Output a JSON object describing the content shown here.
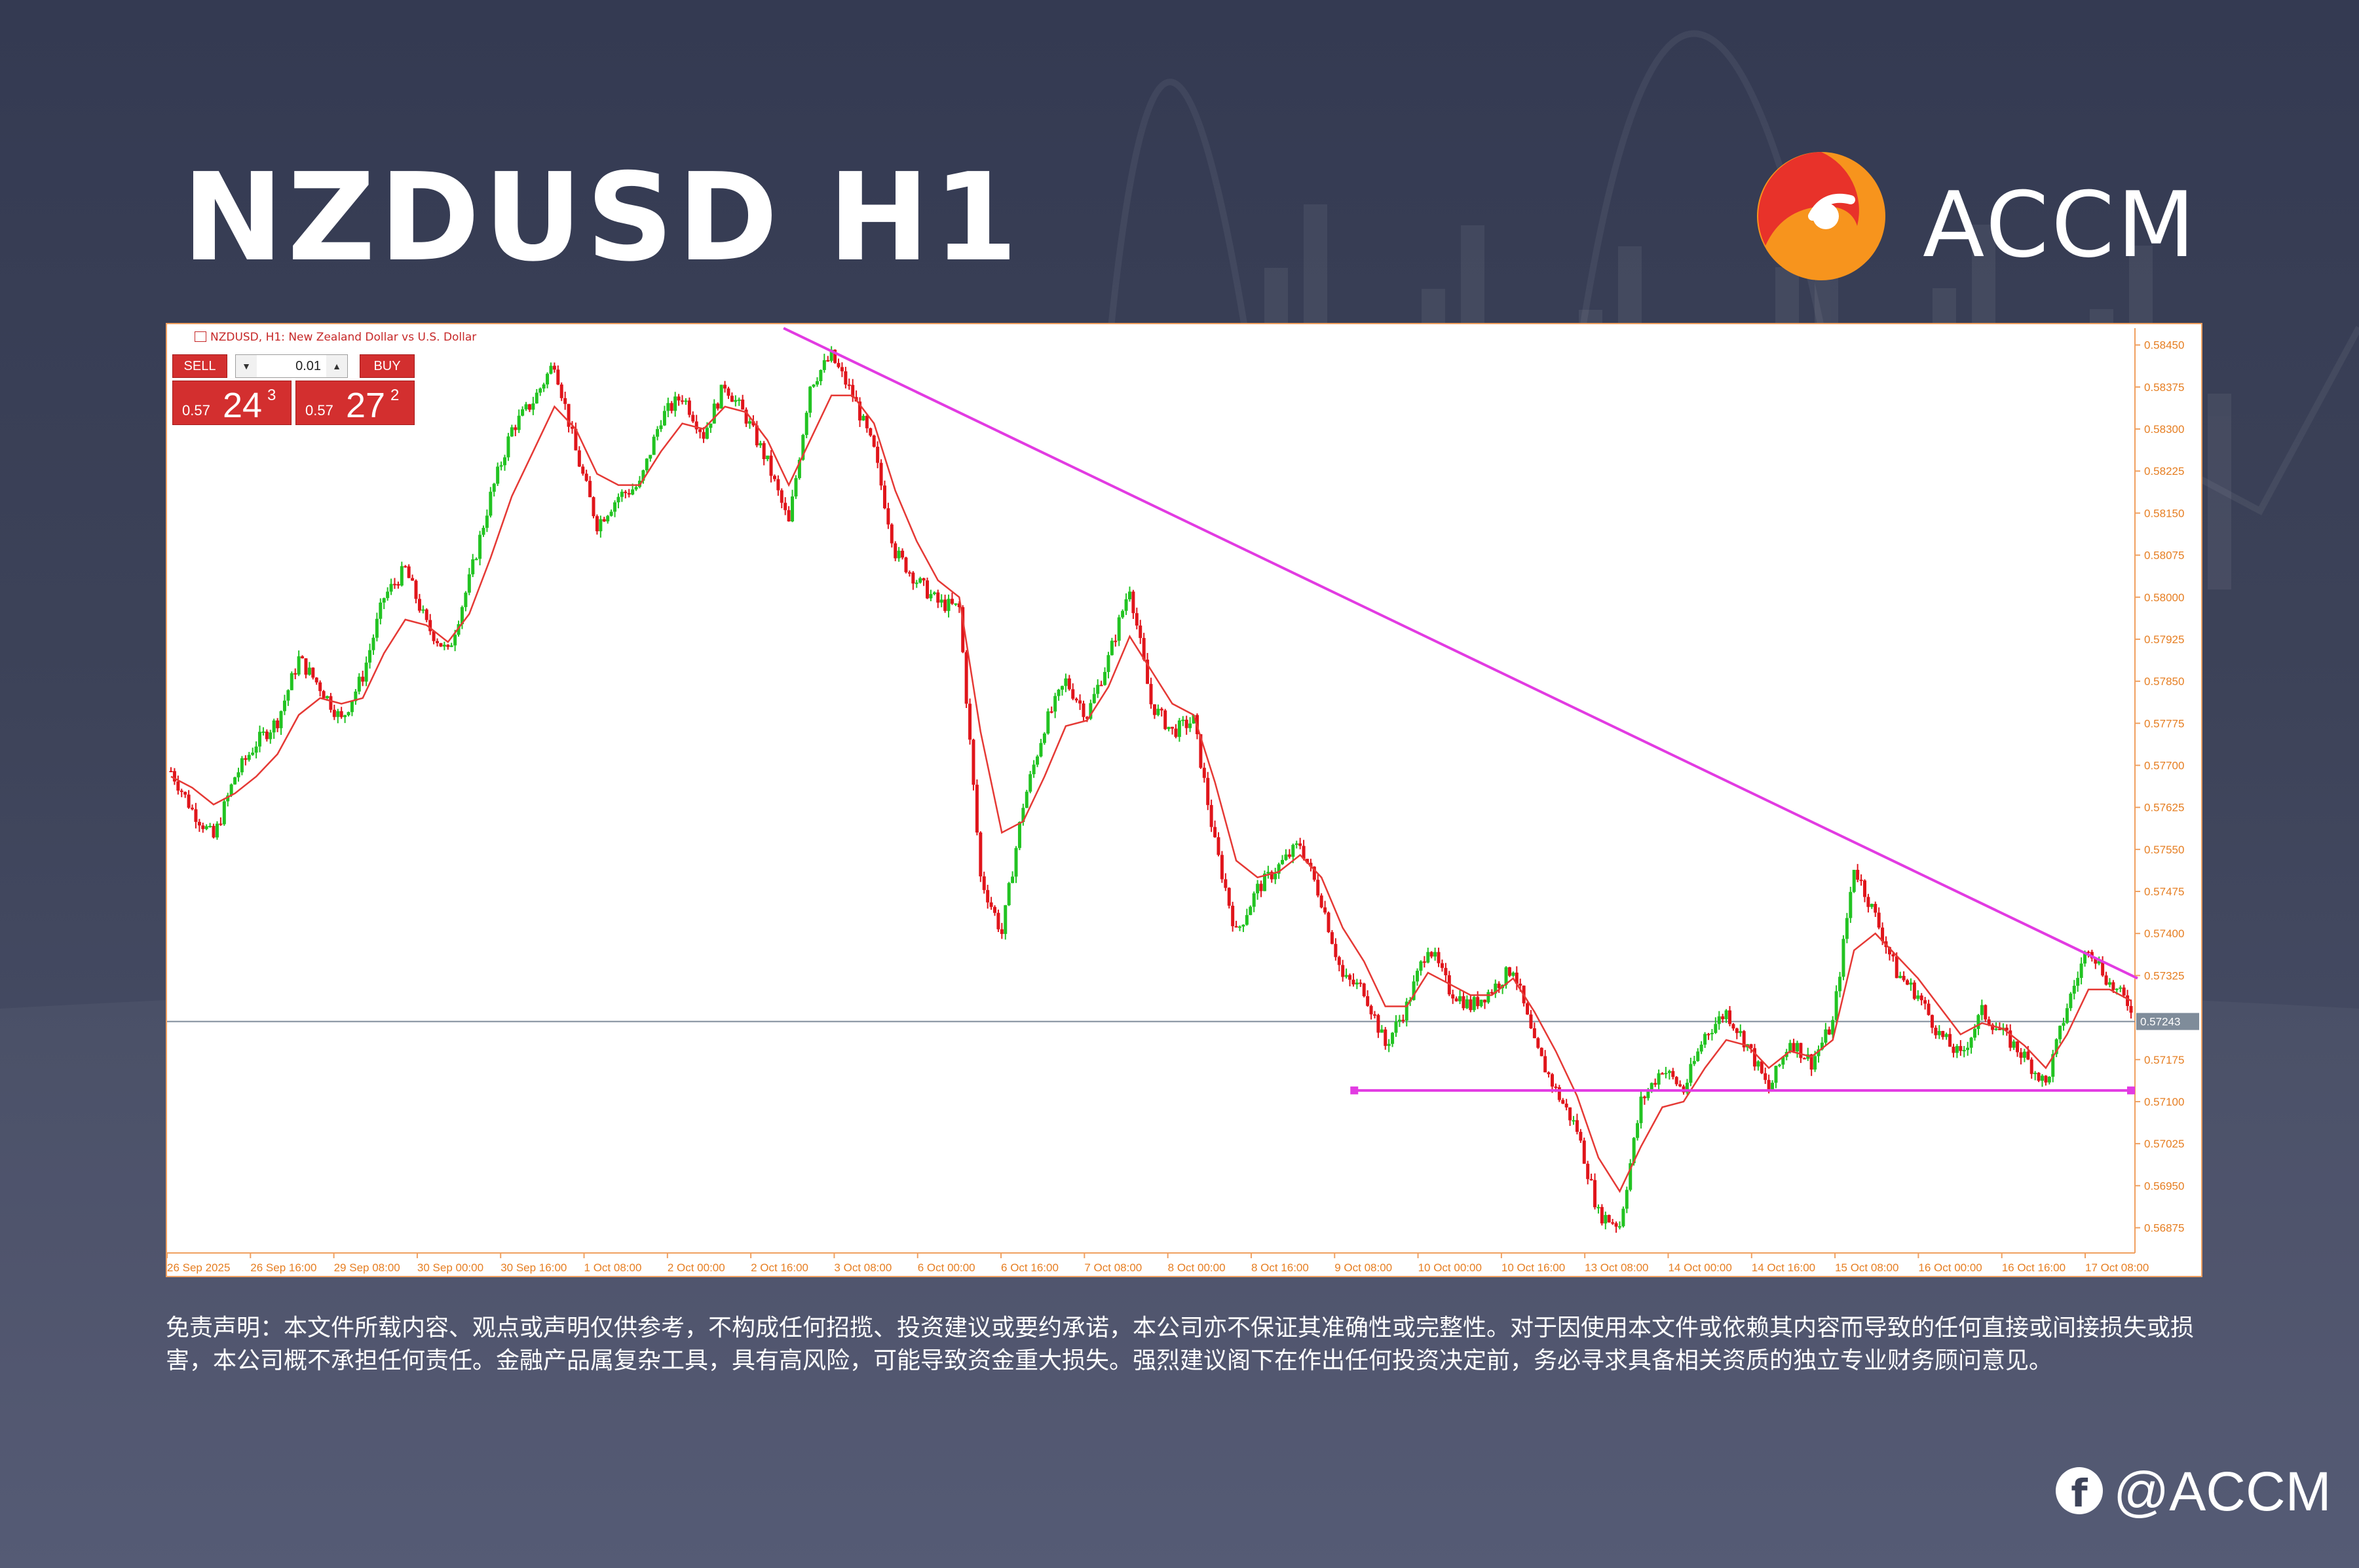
{
  "page": {
    "title": "NZDUSD H1",
    "brand": "ACCM",
    "social_handle": "@ACCM",
    "social_icon": "facebook-icon",
    "disclaimer": "免责声明：本文件所载内容、观点或声明仅供参考，不构成任何招揽、投资建议或要约承诺，本公司亦不保证其准确性或完整性。对于因使用本文件或依赖其内容而导致的任何直接或间接损失或损害，本公司概不承担任何责任。金融产品属复杂工具，具有高风险，可能导致资金重大损失。强烈建议阁下在作出任何投资决定前，务必寻求具备相关资质的独立专业财务顾问意见。",
    "colors": {
      "background": "#3d4359",
      "bull_candle": "#22c322",
      "bear_candle": "#e0151b",
      "moving_average": "#e53935",
      "trendlines": "#e23be2",
      "brand_red": "#e8322a",
      "brand_orange": "#f7941d"
    }
  },
  "chart_data": {
    "type": "candlestick",
    "symbol_header": "NZDUSD, H1:  New Zealand Dollar vs U.S. Dollar",
    "trade_panel": {
      "sell_label": "SELL",
      "buy_label": "BUY",
      "lot": "0.01",
      "sell_price_prefix": "0.57",
      "sell_price_big": "24",
      "sell_price_sup": "3",
      "buy_price_prefix": "0.57",
      "buy_price_big": "27",
      "buy_price_sup": "2"
    },
    "y_ticks": [
      "0.58450",
      "0.58375",
      "0.58300",
      "0.58225",
      "0.58150",
      "0.58075",
      "0.58000",
      "0.57925",
      "0.57850",
      "0.57775",
      "0.57700",
      "0.57625",
      "0.57550",
      "0.57475",
      "0.57400",
      "0.57325",
      "0.57175",
      "0.57100",
      "0.57025",
      "0.56950",
      "0.56875"
    ],
    "ylim": [
      0.5683,
      0.5848
    ],
    "x_labels": [
      "26 Sep 2025",
      "26 Sep 16:00",
      "29 Sep 08:00",
      "30 Sep 00:00",
      "30 Sep 16:00",
      "1 Oct 08:00",
      "2 Oct 00:00",
      "2 Oct 16:00",
      "3 Oct 08:00",
      "6 Oct 00:00",
      "6 Oct 16:00",
      "7 Oct 08:00",
      "8 Oct 00:00",
      "8 Oct 16:00",
      "9 Oct 08:00",
      "10 Oct 00:00",
      "10 Oct 16:00",
      "13 Oct 08:00",
      "14 Oct 00:00",
      "14 Oct 16:00",
      "15 Oct 08:00",
      "16 Oct 00:00",
      "16 Oct 16:00",
      "17 Oct 08:00"
    ],
    "current_price": "0.57243",
    "close_path": [
      0.5769,
      0.5762,
      0.5757,
      0.5768,
      0.5774,
      0.5778,
      0.5789,
      0.5784,
      0.5778,
      0.5786,
      0.58,
      0.5805,
      0.5795,
      0.579,
      0.5803,
      0.5818,
      0.583,
      0.5835,
      0.5842,
      0.5826,
      0.5813,
      0.5818,
      0.582,
      0.5832,
      0.5836,
      0.5829,
      0.5838,
      0.5832,
      0.5824,
      0.5813,
      0.5838,
      0.5843,
      0.5836,
      0.5826,
      0.5808,
      0.5803,
      0.5799,
      0.5798,
      0.575,
      0.574,
      0.5763,
      0.5777,
      0.5785,
      0.5779,
      0.5789,
      0.5802,
      0.5781,
      0.5776,
      0.5778,
      0.5756,
      0.574,
      0.5748,
      0.5752,
      0.5756,
      0.5746,
      0.5732,
      0.573,
      0.572,
      0.5727,
      0.5738,
      0.573,
      0.5727,
      0.573,
      0.5734,
      0.572,
      0.5712,
      0.5705,
      0.569,
      0.5688,
      0.571,
      0.5716,
      0.5712,
      0.5722,
      0.5726,
      0.572,
      0.5712,
      0.5721,
      0.5717,
      0.5724,
      0.5752,
      0.5743,
      0.5733,
      0.5729,
      0.5722,
      0.5718,
      0.5726,
      0.5722,
      0.5718,
      0.5713,
      0.5727,
      0.5738,
      0.5731,
      0.5727
    ],
    "moving_average_path": [
      0.5768,
      0.5766,
      0.5763,
      0.5765,
      0.5768,
      0.5772,
      0.5779,
      0.5782,
      0.5781,
      0.5782,
      0.579,
      0.5796,
      0.5795,
      0.5792,
      0.5797,
      0.5807,
      0.5818,
      0.5826,
      0.5834,
      0.583,
      0.5822,
      0.582,
      0.582,
      0.5826,
      0.5831,
      0.583,
      0.5834,
      0.5833,
      0.5828,
      0.582,
      0.5828,
      0.5836,
      0.5836,
      0.5831,
      0.5819,
      0.581,
      0.5803,
      0.58,
      0.5776,
      0.5758,
      0.576,
      0.5768,
      0.5777,
      0.5778,
      0.5784,
      0.5793,
      0.5787,
      0.5781,
      0.5779,
      0.5767,
      0.5753,
      0.575,
      0.5751,
      0.5754,
      0.575,
      0.5741,
      0.5735,
      0.5727,
      0.5727,
      0.5733,
      0.5731,
      0.5729,
      0.5729,
      0.5732,
      0.5726,
      0.5719,
      0.5711,
      0.57,
      0.5694,
      0.5702,
      0.5709,
      0.571,
      0.5716,
      0.5721,
      0.572,
      0.5716,
      0.5719,
      0.5718,
      0.5721,
      0.5737,
      0.574,
      0.5736,
      0.5732,
      0.5727,
      0.5722,
      0.5724,
      0.5723,
      0.572,
      0.5716,
      0.5722,
      0.573,
      0.573,
      0.5728
    ],
    "trendline_down": {
      "from_label": "2 Oct 16:00",
      "from_price": 0.5848,
      "to_label": "17 Oct 08:00",
      "to_price": 0.5732
    },
    "support_line": {
      "price": 0.5712,
      "from_label": "9 Oct 08:00",
      "to_label": "17 Oct 08:00"
    },
    "grid": false
  }
}
